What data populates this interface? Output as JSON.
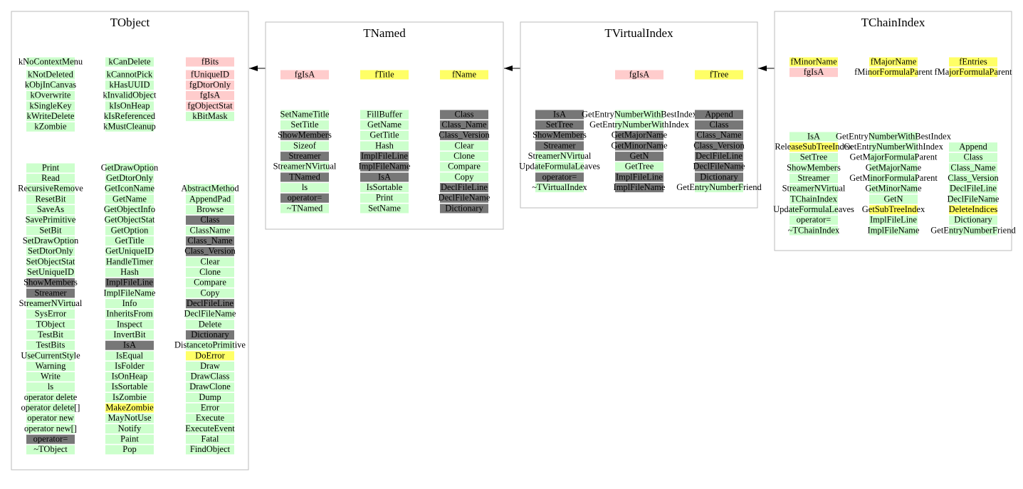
{
  "classes": [
    {
      "title": "TObject",
      "groups": [
        {
          "columns": [
            [
              [
                "kNoContextMenu",
                "#cfc"
              ]
            ],
            [
              [
                "kCanDelete",
                "#cfc"
              ]
            ],
            [
              [
                "fBits",
                "#fcc"
              ]
            ]
          ]
        },
        {
          "columns": [
            [
              [
                "kNotDeleted",
                "#cfc"
              ],
              [
                "kObjInCanvas",
                "#cfc"
              ],
              [
                "kOverwrite",
                "#cfc"
              ],
              [
                "kSingleKey",
                "#cfc"
              ],
              [
                "kWriteDelete",
                "#cfc"
              ],
              [
                "kZombie",
                "#cfc"
              ]
            ],
            [
              [
                "kCannotPick",
                "#cfc"
              ],
              [
                "kHasUUID",
                "#cfc"
              ],
              [
                "kInvalidObject",
                "#cfc"
              ],
              [
                "kIsOnHeap",
                "#cfc"
              ],
              [
                "kIsReferenced",
                "#cfc"
              ],
              [
                "kMustCleanup",
                "#cfc"
              ]
            ],
            [
              [
                "fUniqueID",
                "#fcc"
              ],
              [
                "fgDtorOnly",
                "#fcc"
              ],
              [
                "fgIsA",
                "#fcc"
              ],
              [
                "fgObjectStat",
                "#fcc"
              ],
              [
                "kBitMask",
                "#cfc"
              ]
            ]
          ]
        },
        {
          "columns": [
            [
              [
                "Print",
                "#cfc"
              ],
              [
                "Read",
                "#cfc"
              ],
              [
                "RecursiveRemove",
                "#cfc"
              ],
              [
                "ResetBit",
                "#cfc"
              ],
              [
                "SaveAs",
                "#cfc"
              ],
              [
                "SavePrimitive",
                "#cfc"
              ],
              [
                "SetBit",
                "#cfc"
              ],
              [
                "SetDrawOption",
                "#cfc"
              ],
              [
                "SetDtorOnly",
                "#cfc"
              ],
              [
                "SetObjectStat",
                "#cfc"
              ],
              [
                "SetUniqueID",
                "#cfc"
              ],
              [
                "ShowMembers",
                "#777"
              ],
              [
                "Streamer",
                "#777"
              ],
              [
                "StreamerNVirtual",
                "#cfc"
              ],
              [
                "SysError",
                "#cfc"
              ],
              [
                "TObject",
                "#cfc"
              ],
              [
                "TestBit",
                "#cfc"
              ],
              [
                "TestBits",
                "#cfc"
              ],
              [
                "UseCurrentStyle",
                "#cfc"
              ],
              [
                "Warning",
                "#cfc"
              ],
              [
                "Write",
                "#cfc"
              ],
              [
                "ls",
                "#cfc"
              ],
              [
                "operator delete",
                "#cfc"
              ],
              [
                "operator delete[]",
                "#cfc"
              ],
              [
                "operator new",
                "#cfc"
              ],
              [
                "operator new[]",
                "#cfc"
              ],
              [
                "operator=",
                "#777"
              ],
              [
                "~TObject",
                "#cfc"
              ]
            ],
            [
              [
                "GetDrawOption",
                "#cfc"
              ],
              [
                "GetDtorOnly",
                "#cfc"
              ],
              [
                "GetIconName",
                "#cfc"
              ],
              [
                "GetName",
                "#cfc"
              ],
              [
                "GetObjectInfo",
                "#cfc"
              ],
              [
                "GetObjectStat",
                "#cfc"
              ],
              [
                "GetOption",
                "#cfc"
              ],
              [
                "GetTitle",
                "#cfc"
              ],
              [
                "GetUniqueID",
                "#cfc"
              ],
              [
                "HandleTimer",
                "#cfc"
              ],
              [
                "Hash",
                "#cfc"
              ],
              [
                "ImplFileLine",
                "#777"
              ],
              [
                "ImplFileName",
                "#cfc"
              ],
              [
                "Info",
                "#cfc"
              ],
              [
                "InheritsFrom",
                "#cfc"
              ],
              [
                "Inspect",
                "#cfc"
              ],
              [
                "InvertBit",
                "#cfc"
              ],
              [
                "IsA",
                "#777"
              ],
              [
                "IsEqual",
                "#cfc"
              ],
              [
                "IsFolder",
                "#cfc"
              ],
              [
                "IsOnHeap",
                "#cfc"
              ],
              [
                "IsSortable",
                "#cfc"
              ],
              [
                "IsZombie",
                "#cfc"
              ],
              [
                "MakeZombie",
                "#ff6"
              ],
              [
                "MayNotUse",
                "#cfc"
              ],
              [
                "Notify",
                "#cfc"
              ],
              [
                "Paint",
                "#cfc"
              ],
              [
                "Pop",
                "#cfc"
              ]
            ],
            [
              [
                "AbstractMethod",
                "#cfc"
              ],
              [
                "AppendPad",
                "#cfc"
              ],
              [
                "Browse",
                "#cfc"
              ],
              [
                "Class",
                "#777"
              ],
              [
                "ClassName",
                "#cfc"
              ],
              [
                "Class_Name",
                "#777"
              ],
              [
                "Class_Version",
                "#777"
              ],
              [
                "Clear",
                "#cfc"
              ],
              [
                "Clone",
                "#cfc"
              ],
              [
                "Compare",
                "#cfc"
              ],
              [
                "Copy",
                "#cfc"
              ],
              [
                "DeclFileLine",
                "#777"
              ],
              [
                "DeclFileName",
                "#cfc"
              ],
              [
                "Delete",
                "#cfc"
              ],
              [
                "Dictionary",
                "#777"
              ],
              [
                "DistancetoPrimitive",
                "#cfc"
              ],
              [
                "DoError",
                "#ff6"
              ],
              [
                "Draw",
                "#cfc"
              ],
              [
                "DrawClass",
                "#cfc"
              ],
              [
                "DrawClone",
                "#cfc"
              ],
              [
                "Dump",
                "#cfc"
              ],
              [
                "Error",
                "#cfc"
              ],
              [
                "Execute",
                "#cfc"
              ],
              [
                "ExecuteEvent",
                "#cfc"
              ],
              [
                "Fatal",
                "#cfc"
              ],
              [
                "FindObject",
                "#cfc"
              ]
            ]
          ]
        }
      ]
    },
    {
      "title": "TNamed",
      "groups": [
        {
          "columns": [
            [
              [
                "fgIsA",
                "#fcc"
              ]
            ],
            [
              [
                "fTitle",
                "#ff6"
              ]
            ],
            [
              [
                "fName",
                "#ff6"
              ]
            ]
          ]
        },
        {
          "columns": [
            [
              [
                "SetNameTitle",
                "#cfc"
              ],
              [
                "SetTitle",
                "#cfc"
              ],
              [
                "ShowMembers",
                "#777"
              ],
              [
                "Sizeof",
                "#cfc"
              ],
              [
                "Streamer",
                "#777"
              ],
              [
                "StreamerNVirtual",
                "#cfc"
              ],
              [
                "TNamed",
                "#777"
              ],
              [
                "ls",
                "#cfc"
              ],
              [
                "operator=",
                "#777"
              ],
              [
                "~TNamed",
                "#cfc"
              ]
            ],
            [
              [
                "FillBuffer",
                "#cfc"
              ],
              [
                "GetName",
                "#cfc"
              ],
              [
                "GetTitle",
                "#cfc"
              ],
              [
                "Hash",
                "#cfc"
              ],
              [
                "ImplFileLine",
                "#777"
              ],
              [
                "ImplFileName",
                "#777"
              ],
              [
                "IsA",
                "#777"
              ],
              [
                "IsSortable",
                "#cfc"
              ],
              [
                "Print",
                "#cfc"
              ],
              [
                "SetName",
                "#cfc"
              ]
            ],
            [
              [
                "Class",
                "#777"
              ],
              [
                "Class_Name",
                "#777"
              ],
              [
                "Class_Version",
                "#777"
              ],
              [
                "Clear",
                "#cfc"
              ],
              [
                "Clone",
                "#cfc"
              ],
              [
                "Compare",
                "#cfc"
              ],
              [
                "Copy",
                "#cfc"
              ],
              [
                "DeclFileLine",
                "#777"
              ],
              [
                "DeclFileName",
                "#777"
              ],
              [
                "Dictionary",
                "#777"
              ]
            ]
          ]
        }
      ]
    },
    {
      "title": "TVirtualIndex",
      "groups": [
        {
          "columns": [
            [],
            [
              [
                "fgIsA",
                "#fcc"
              ]
            ],
            [
              [
                "fTree",
                "#ff6"
              ]
            ]
          ]
        },
        {
          "columns": [
            [
              [
                "IsA",
                "#777"
              ],
              [
                "SetTree",
                "#777"
              ],
              [
                "ShowMembers",
                "#777"
              ],
              [
                "Streamer",
                "#777"
              ],
              [
                "StreamerNVirtual",
                "#cfc"
              ],
              [
                "UpdateFormulaLeaves",
                "#cfc"
              ],
              [
                "operator=",
                "#777"
              ],
              [
                "~TVirtualIndex",
                "#cfc"
              ]
            ],
            [
              [
                "GetEntryNumberWithBestIndex",
                "#cfc"
              ],
              [
                "GetEntryNumberWithIndex",
                "#cfc"
              ],
              [
                "GetMajorName",
                "#777"
              ],
              [
                "GetMinorName",
                "#777"
              ],
              [
                "GetN",
                "#777"
              ],
              [
                "GetTree",
                "#cfc"
              ],
              [
                "ImplFileLine",
                "#777"
              ],
              [
                "ImplFileName",
                "#777"
              ]
            ],
            [
              [
                "Append",
                "#777"
              ],
              [
                "Class",
                "#777"
              ],
              [
                "Class_Name",
                "#777"
              ],
              [
                "Class_Version",
                "#777"
              ],
              [
                "DeclFileLine",
                "#777"
              ],
              [
                "DeclFileName",
                "#777"
              ],
              [
                "Dictionary",
                "#777"
              ],
              [
                "GetEntryNumberFriend",
                "#cfc"
              ]
            ]
          ]
        }
      ]
    },
    {
      "title": "TChainIndex",
      "groups": [
        {
          "columns": [
            [
              [
                "fMinorName",
                "#ff6"
              ],
              [
                "fgIsA",
                "#fcc"
              ]
            ],
            [
              [
                "fMajorName",
                "#ff6"
              ],
              [
                "fMinorFormulaParent",
                "#ff6"
              ]
            ],
            [
              [
                "fEntries",
                "#ff6"
              ],
              [
                "fMajorFormulaParent",
                "#ff6"
              ]
            ]
          ]
        },
        {
          "columns": [
            [
              [
                "IsA",
                "#cfc"
              ],
              [
                "ReleaseSubTreeIndex",
                "#ff6"
              ],
              [
                "SetTree",
                "#cfc"
              ],
              [
                "ShowMembers",
                "#cfc"
              ],
              [
                "Streamer",
                "#cfc"
              ],
              [
                "StreamerNVirtual",
                "#cfc"
              ],
              [
                "TChainIndex",
                "#cfc"
              ],
              [
                "UpdateFormulaLeaves",
                "#cfc"
              ],
              [
                "operator=",
                "#cfc"
              ],
              [
                "~TChainIndex",
                "#cfc"
              ]
            ],
            [
              [
                "GetEntryNumberWithBestIndex",
                "#cfc"
              ],
              [
                "GetEntryNumberWithIndex",
                "#cfc"
              ],
              [
                "GetMajorFormulaParent",
                "#cfc"
              ],
              [
                "GetMajorName",
                "#cfc"
              ],
              [
                "GetMinorFormulaParent",
                "#cfc"
              ],
              [
                "GetMinorName",
                "#cfc"
              ],
              [
                "GetN",
                "#cfc"
              ],
              [
                "GetSubTreeIndex",
                "#ff6"
              ],
              [
                "ImplFileLine",
                "#cfc"
              ],
              [
                "ImplFileName",
                "#cfc"
              ]
            ],
            [
              [
                "Append",
                "#cfc"
              ],
              [
                "Class",
                "#cfc"
              ],
              [
                "Class_Name",
                "#cfc"
              ],
              [
                "Class_Version",
                "#cfc"
              ],
              [
                "DeclFileLine",
                "#cfc"
              ],
              [
                "DeclFileName",
                "#cfc"
              ],
              [
                "DeleteIndices",
                "#ff6"
              ],
              [
                "Dictionary",
                "#cfc"
              ],
              [
                "GetEntryNumberFriend",
                "#cfc"
              ]
            ]
          ]
        }
      ]
    }
  ]
}
